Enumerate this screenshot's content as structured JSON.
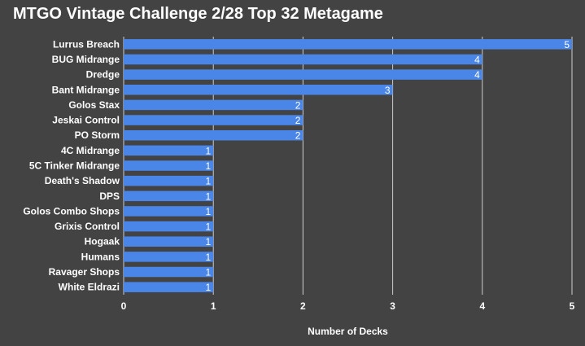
{
  "chart_data": {
    "type": "bar",
    "orientation": "horizontal",
    "title": "MTGO Vintage Challenge 2/28 Top 32 Metagame",
    "xlabel": "Number of Decks",
    "ylabel": "",
    "xlim": [
      0,
      5
    ],
    "ticks": [
      "0",
      "1",
      "2",
      "3",
      "4",
      "5"
    ],
    "grid": true,
    "legend": "none",
    "bar_color": "#4a86e8",
    "background_color": "#434343",
    "grid_color": "#cccccc",
    "categories": [
      "Lurrus Breach",
      "BUG Midrange",
      "Dredge",
      "Bant Midrange",
      "Golos Stax",
      "Jeskai Control",
      "PO Storm",
      "4C Midrange",
      "5C Tinker Midrange",
      "Death's Shadow",
      "DPS",
      "Golos Combo Shops",
      "Grixis Control",
      "Hogaak",
      "Humans",
      "Ravager Shops",
      "White Eldrazi"
    ],
    "values": [
      5,
      4,
      4,
      3,
      2,
      2,
      2,
      1,
      1,
      1,
      1,
      1,
      1,
      1,
      1,
      1,
      1
    ]
  }
}
